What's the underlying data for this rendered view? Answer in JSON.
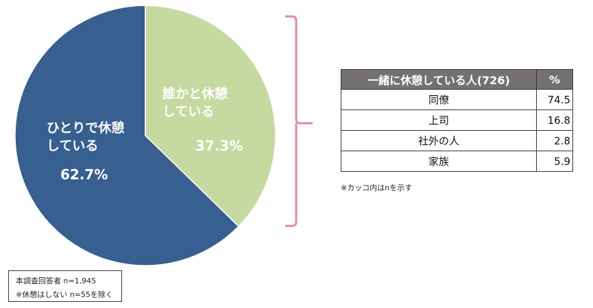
{
  "chart_data": [
    {
      "type": "pie",
      "slices": [
        {
          "label_lines": [
            "ひとりで休憩",
            "している"
          ],
          "value": 62.7,
          "value_label": "62.7%",
          "color": "#375f90"
        },
        {
          "label_lines": [
            "誰かと休憩",
            "している"
          ],
          "value": 37.3,
          "value_label": "37.3%",
          "color": "#c6d9a0"
        }
      ]
    },
    {
      "type": "table",
      "columns": [
        "一緒に休憩している人(726)",
        "%"
      ],
      "rows": [
        {
          "category": "同僚",
          "value": "74.5"
        },
        {
          "category": "上司",
          "value": "16.8"
        },
        {
          "category": "社外の人",
          "value": "2.8"
        },
        {
          "category": "家族",
          "value": "5.9"
        }
      ],
      "header_color": "#767171"
    }
  ],
  "notes": {
    "table_note": "※カッコ内はnを示す",
    "base_line1": "本調査回答者 n=1,945",
    "base_line2": "※休憩はしない n=55を除く"
  },
  "bracket_color": "#e08a9a"
}
